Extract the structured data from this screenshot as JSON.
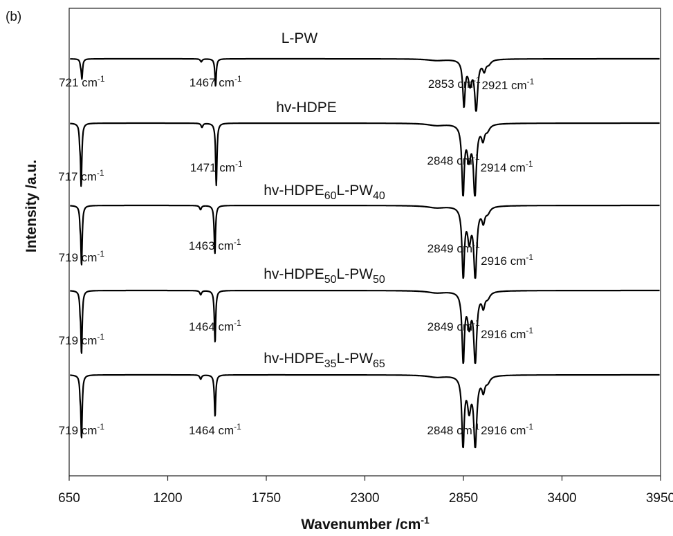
{
  "panel_label": "(b)",
  "chart_data": {
    "type": "line",
    "xlabel": "Wavenumber /cm",
    "xlabel_sup": "-1",
    "ylabel": "Intensity /a.u.",
    "xlim": [
      650,
      3950
    ],
    "xticks": [
      650,
      1200,
      1750,
      2300,
      2850,
      3400,
      3950
    ],
    "grid": false,
    "series": [
      {
        "title_parts": [
          {
            "t": "L-PW",
            "sub": false
          }
        ],
        "peaks": [
          {
            "wn": 721,
            "depth": 0.4,
            "label": "721 cm",
            "sup": "-1"
          },
          {
            "wn": 1467,
            "depth": 0.55,
            "label": "1467 cm",
            "sup": "-1"
          },
          {
            "wn": 2853,
            "depth": 0.9,
            "label": "2853 cm",
            "sup": "-1"
          },
          {
            "wn": 2921,
            "depth": 1.0,
            "label": "2921 cm",
            "sup": "-1"
          }
        ]
      },
      {
        "title_parts": [
          {
            "t": "hv-HDPE",
            "sub": false
          }
        ],
        "peaks": [
          {
            "wn": 717,
            "depth": 0.9,
            "label": "717 cm",
            "sup": "-1"
          },
          {
            "wn": 1471,
            "depth": 0.9,
            "label": "1471 cm",
            "sup": "-1"
          },
          {
            "wn": 2848,
            "depth": 1.0,
            "label": "2848 cm",
            "sup": "-1"
          },
          {
            "wn": 2914,
            "depth": 1.0,
            "label": "2914 cm",
            "sup": "-1"
          }
        ]
      },
      {
        "title_parts": [
          {
            "t": "hv-HDPE",
            "sub": false
          },
          {
            "t": "60",
            "sub": true
          },
          {
            "t": "L-PW",
            "sub": false
          },
          {
            "t": "40",
            "sub": true
          }
        ],
        "peaks": [
          {
            "wn": 719,
            "depth": 0.85,
            "label": "719 cm",
            "sup": "-1"
          },
          {
            "wn": 1463,
            "depth": 0.7,
            "label": "1463 cm",
            "sup": "-1"
          },
          {
            "wn": 2849,
            "depth": 1.0,
            "label": "2849 cm",
            "sup": "-1"
          },
          {
            "wn": 2916,
            "depth": 1.0,
            "label": "2916 cm",
            "sup": "-1"
          }
        ]
      },
      {
        "title_parts": [
          {
            "t": "hv-HDPE",
            "sub": false
          },
          {
            "t": "50",
            "sub": true
          },
          {
            "t": "L-PW",
            "sub": false
          },
          {
            "t": "50",
            "sub": true
          }
        ],
        "peaks": [
          {
            "wn": 719,
            "depth": 0.9,
            "label": "719 cm",
            "sup": "-1"
          },
          {
            "wn": 1464,
            "depth": 0.75,
            "label": "1464 cm",
            "sup": "-1"
          },
          {
            "wn": 2849,
            "depth": 1.0,
            "label": "2849 cm",
            "sup": "-1"
          },
          {
            "wn": 2916,
            "depth": 1.0,
            "label": "2916 cm",
            "sup": "-1"
          }
        ]
      },
      {
        "title_parts": [
          {
            "t": "hv-HDPE",
            "sub": false
          },
          {
            "t": "35",
            "sub": true
          },
          {
            "t": "L-PW",
            "sub": false
          },
          {
            "t": "65",
            "sub": true
          }
        ],
        "peaks": [
          {
            "wn": 719,
            "depth": 0.9,
            "label": "719 cm",
            "sup": "-1"
          },
          {
            "wn": 1464,
            "depth": 0.6,
            "label": "1464 cm",
            "sup": "-1"
          },
          {
            "wn": 2848,
            "depth": 1.0,
            "label": "2848 cm",
            "sup": "-1"
          },
          {
            "wn": 2916,
            "depth": 1.0,
            "label": "2916 cm",
            "sup": "-1"
          }
        ]
      }
    ]
  }
}
